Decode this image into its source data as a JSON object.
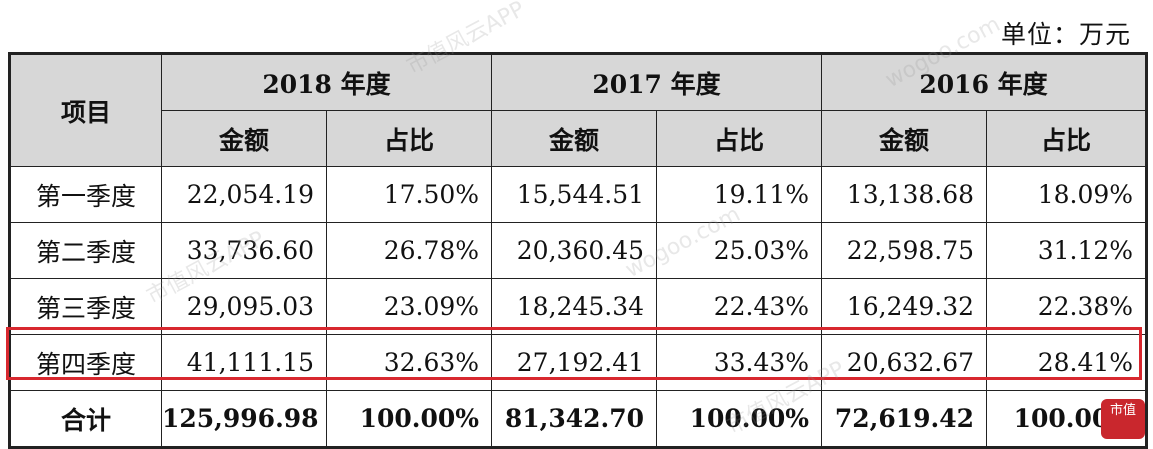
{
  "unit_label": "单位：万元",
  "table": {
    "item_header": "项目",
    "years": [
      "2018 年度",
      "2017 年度",
      "2016 年度"
    ],
    "sub_headers": [
      "金额",
      "占比",
      "金额",
      "占比",
      "金额",
      "占比"
    ],
    "rows": [
      {
        "label": "第一季度",
        "cells": [
          "22,054.19",
          "17.50%",
          "15,544.51",
          "19.11%",
          "13,138.68",
          "18.09%"
        ]
      },
      {
        "label": "第二季度",
        "cells": [
          "33,736.60",
          "26.78%",
          "20,360.45",
          "25.03%",
          "22,598.75",
          "31.12%"
        ]
      },
      {
        "label": "第三季度",
        "cells": [
          "29,095.03",
          "23.09%",
          "18,245.34",
          "22.43%",
          "16,249.32",
          "22.38%"
        ]
      },
      {
        "label": "第四季度",
        "cells": [
          "41,111.15",
          "32.63%",
          "27,192.41",
          "33.43%",
          "20,632.67",
          "28.41%"
        ]
      },
      {
        "label": "合计",
        "cells": [
          "125,996.98",
          "100.00%",
          "81,342.70",
          "100.00%",
          "72,619.42",
          "100.00%"
        ]
      }
    ]
  },
  "highlight_color": "#d8282f",
  "logo": {
    "text": "市值",
    "color": "#c9272d"
  },
  "watermark_texts": [
    "市值风云APP",
    "wogoo.com"
  ]
}
